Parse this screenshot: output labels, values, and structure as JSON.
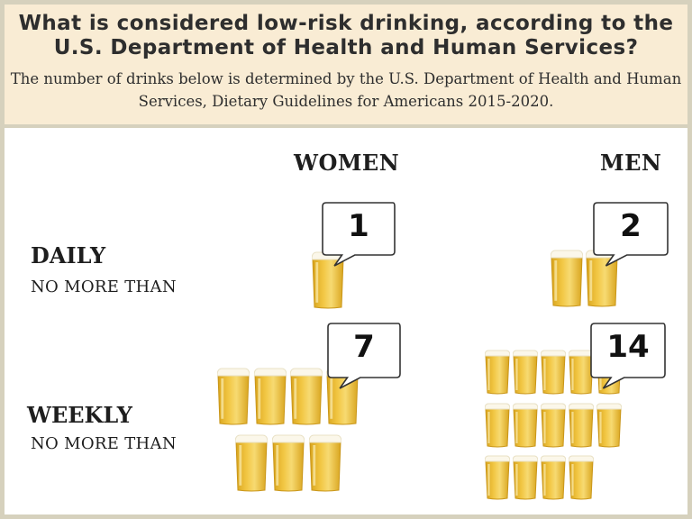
{
  "header": {
    "title": "What is considered low-risk drinking, according to the U.S. Department of Health and Human Services?",
    "subtitle": "The number of drinks below is determined by the U.S. Department of Health and Human Services, Dietary Guidelines for Americans 2015-2020."
  },
  "columns": {
    "women": "WOMEN",
    "men": "MEN"
  },
  "rows": {
    "daily": {
      "label": "DAILY",
      "sub": "NO MORE THAN"
    },
    "weekly": {
      "label": "WEEKLY",
      "sub": "NO MORE THAN"
    }
  },
  "limits": {
    "women_daily": "1",
    "men_daily": "2",
    "women_weekly": "7",
    "men_weekly": "14"
  },
  "icons": {
    "drink": "beer-glass-icon",
    "bubble": "speech-bubble-icon"
  },
  "colors": {
    "header_bg": "#f9ecd4",
    "border": "#d6d1bd",
    "beer": "#f2c744",
    "foam": "#fbf7ea"
  }
}
